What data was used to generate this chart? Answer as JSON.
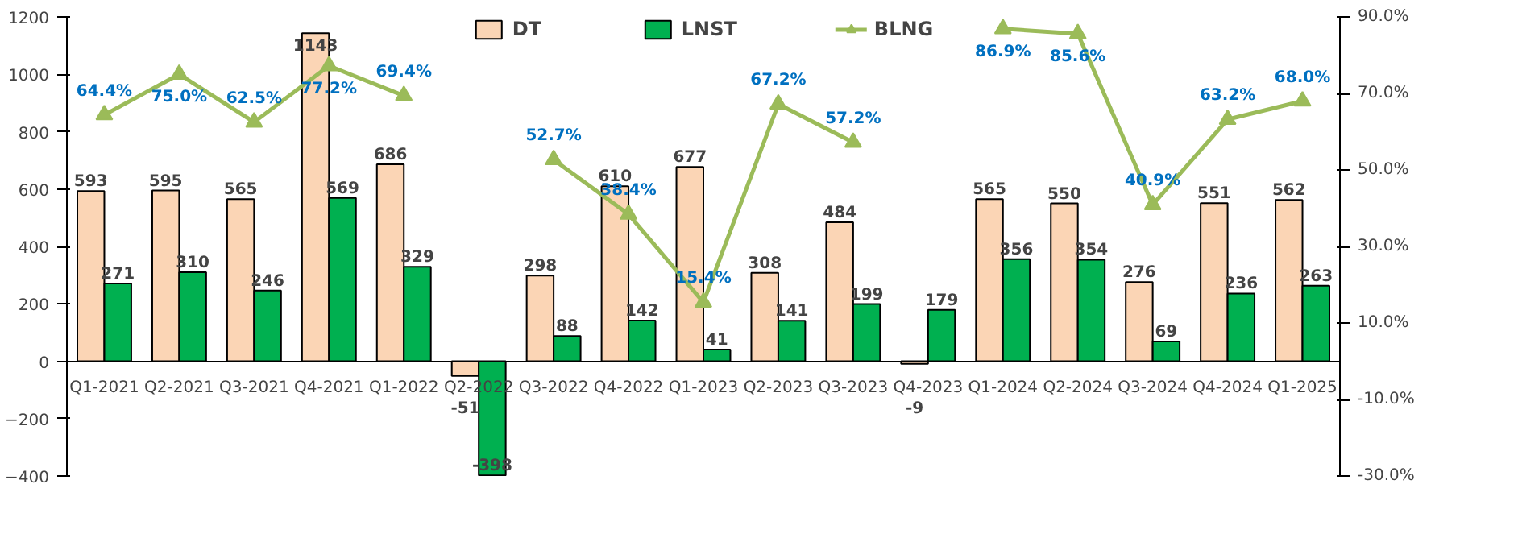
{
  "chart_data": {
    "type": "bar",
    "categories": [
      "Q1-2021",
      "Q2-2021",
      "Q3-2021",
      "Q4-2021",
      "Q1-2022",
      "Q2-2022",
      "Q3-2022",
      "Q4-2022",
      "Q1-2023",
      "Q2-2023",
      "Q3-2023",
      "Q4-2023",
      "Q1-2024",
      "Q2-2024",
      "Q3-2024",
      "Q4-2024",
      "Q1-2025"
    ],
    "series": [
      {
        "name": "DT",
        "color": "#fbd5b5",
        "values": [
          593,
          595,
          565,
          1143,
          686,
          -51,
          298,
          610,
          677,
          308,
          484,
          -9,
          565,
          550,
          276,
          551,
          562
        ]
      },
      {
        "name": "LNST",
        "color": "#00b050",
        "values": [
          271,
          310,
          246,
          569,
          329,
          -398,
          88,
          142,
          41,
          141,
          199,
          179,
          356,
          354,
          69,
          236,
          263
        ]
      },
      {
        "name": "BLNG",
        "type": "line",
        "axis": "y2",
        "color": "#9bbb59",
        "values": [
          64.4,
          75.0,
          62.5,
          77.2,
          69.4,
          null,
          52.7,
          38.4,
          15.4,
          67.2,
          57.2,
          null,
          86.9,
          85.6,
          40.9,
          63.2,
          68.0
        ],
        "value_labels": [
          "64.4%",
          "75.0%",
          "62.5%",
          "77.2%",
          "69.4%",
          null,
          "52.7%",
          "38.4%",
          "15.4%",
          "67.2%",
          "57.2%",
          null,
          "86.9%",
          "85.6%",
          "40.9%",
          "63.2%",
          "68.0%"
        ]
      }
    ],
    "ylim": [
      -400,
      1200
    ],
    "yticks": [
      -400,
      -200,
      0,
      200,
      400,
      600,
      800,
      1000,
      1200
    ],
    "y2lim": [
      -30,
      90
    ],
    "y2ticks": [
      {
        "value": -30,
        "label": "-30.0%"
      },
      {
        "value": -10,
        "label": "-10.0%"
      },
      {
        "value": 10,
        "label": "10.0%"
      },
      {
        "value": 30,
        "label": "30.0%"
      },
      {
        "value": 50,
        "label": "50.0%"
      },
      {
        "value": 70,
        "label": "70.0%"
      },
      {
        "value": 90,
        "label": "90.0%"
      }
    ],
    "marker": "triangle",
    "legend": "top",
    "data_labels": true,
    "grid": false
  }
}
